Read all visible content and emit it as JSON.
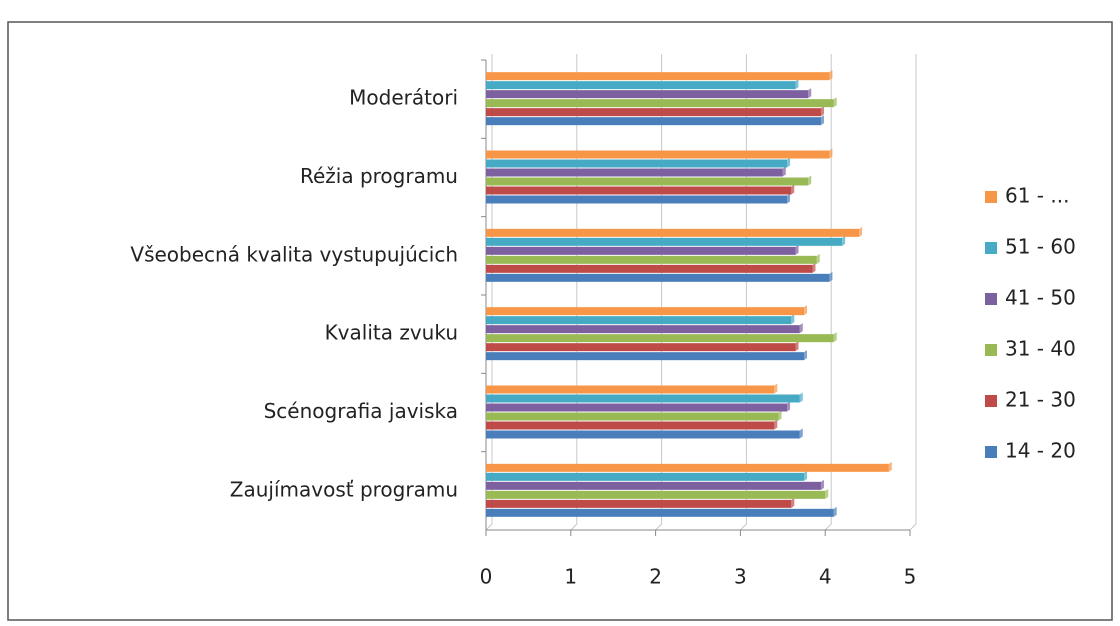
{
  "chart_data": {
    "type": "hbar",
    "categories": [
      "Zaujímavosť programu",
      "Scénografia javiska",
      "Kvalita zvuku",
      "Všeobecná kvalita vystupujúcich",
      "Réžia programu",
      "Moderátori"
    ],
    "series": [
      {
        "name": "14 - 20",
        "color": "#4a7ebb",
        "values": [
          4.1,
          3.7,
          3.75,
          4.05,
          3.55,
          3.95
        ]
      },
      {
        "name": "21 - 30",
        "color": "#be4b48",
        "values": [
          3.6,
          3.4,
          3.65,
          3.85,
          3.6,
          3.95
        ]
      },
      {
        "name": "31 - 40",
        "color": "#98b954",
        "values": [
          4.0,
          3.45,
          4.1,
          3.9,
          3.8,
          4.1
        ]
      },
      {
        "name": "41 - 50",
        "color": "#7d60a0",
        "values": [
          3.95,
          3.55,
          3.7,
          3.65,
          3.5,
          3.8
        ]
      },
      {
        "name": "51 - 60",
        "color": "#46aac5",
        "values": [
          3.75,
          3.7,
          3.6,
          4.2,
          3.55,
          3.65
        ]
      },
      {
        "name": "61 - ...",
        "color": "#f79646",
        "values": [
          4.75,
          3.4,
          3.75,
          4.4,
          4.05,
          4.05
        ]
      }
    ],
    "xlim": [
      0,
      5
    ],
    "xticks": [
      0,
      1,
      2,
      3,
      4,
      5
    ],
    "grid": true,
    "legend": "right"
  }
}
